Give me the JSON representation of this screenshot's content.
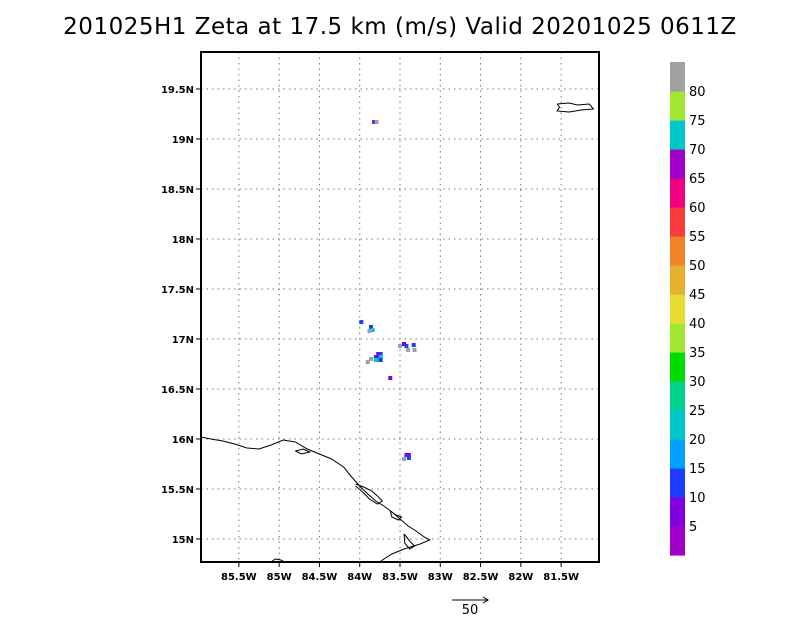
{
  "title": "201025H1 Zeta at 17.5 km (m/s) Valid 20201025 0611Z",
  "map": {
    "lon_range": [
      -85.97,
      -81.03
    ],
    "lat_range": [
      14.77,
      19.87
    ],
    "lon_ticks": [
      {
        "value": -85.5,
        "label": "85.5W"
      },
      {
        "value": -85.0,
        "label": "85W"
      },
      {
        "value": -84.5,
        "label": "84.5W"
      },
      {
        "value": -84.0,
        "label": "84W"
      },
      {
        "value": -83.5,
        "label": "83.5W"
      },
      {
        "value": -83.0,
        "label": "83W"
      },
      {
        "value": -82.5,
        "label": "82.5W"
      },
      {
        "value": -82.0,
        "label": "82W"
      },
      {
        "value": -81.5,
        "label": "81.5W"
      }
    ],
    "lat_ticks": [
      {
        "value": 15.0,
        "label": "15N"
      },
      {
        "value": 15.5,
        "label": "15.5N"
      },
      {
        "value": 16.0,
        "label": "16N"
      },
      {
        "value": 16.5,
        "label": "16.5N"
      },
      {
        "value": 17.0,
        "label": "17N"
      },
      {
        "value": 17.5,
        "label": "17.5N"
      },
      {
        "value": 18.0,
        "label": "18N"
      },
      {
        "value": 18.5,
        "label": "18.5N"
      },
      {
        "value": 19.0,
        "label": "19N"
      },
      {
        "value": 19.5,
        "label": "19.5N"
      }
    ],
    "grid": true,
    "coastline": [
      [
        [
          -85.97,
          16.02
        ],
        [
          -85.85,
          16.0
        ],
        [
          -85.7,
          15.98
        ],
        [
          -85.55,
          15.95
        ],
        [
          -85.4,
          15.91
        ],
        [
          -85.25,
          15.9
        ],
        [
          -85.1,
          15.94
        ],
        [
          -84.95,
          15.99
        ],
        [
          -84.8,
          15.97
        ],
        [
          -84.65,
          15.9
        ],
        [
          -84.5,
          15.85
        ],
        [
          -84.35,
          15.8
        ],
        [
          -84.2,
          15.72
        ],
        [
          -84.1,
          15.62
        ],
        [
          -84.0,
          15.53
        ],
        [
          -83.9,
          15.45
        ],
        [
          -83.8,
          15.38
        ],
        [
          -83.7,
          15.33
        ],
        [
          -83.6,
          15.27
        ],
        [
          -83.5,
          15.2
        ],
        [
          -83.4,
          15.13
        ],
        [
          -83.3,
          15.08
        ],
        [
          -83.2,
          15.02
        ],
        [
          -83.13,
          14.99
        ],
        [
          -83.25,
          14.95
        ],
        [
          -83.45,
          14.9
        ],
        [
          -83.6,
          14.85
        ],
        [
          -83.7,
          14.8
        ],
        [
          -83.75,
          14.77
        ]
      ],
      [
        [
          -84.05,
          15.55
        ],
        [
          -83.95,
          15.52
        ],
        [
          -83.85,
          15.48
        ],
        [
          -83.78,
          15.43
        ],
        [
          -83.72,
          15.38
        ],
        [
          -83.78,
          15.35
        ],
        [
          -83.88,
          15.4
        ],
        [
          -83.95,
          15.46
        ],
        [
          -84.05,
          15.53
        ]
      ],
      [
        [
          -83.62,
          15.28
        ],
        [
          -83.55,
          15.24
        ],
        [
          -83.48,
          15.22
        ],
        [
          -83.52,
          15.19
        ],
        [
          -83.6,
          15.22
        ],
        [
          -83.62,
          15.28
        ]
      ],
      [
        [
          -83.45,
          15.05
        ],
        [
          -83.38,
          14.98
        ],
        [
          -83.32,
          14.93
        ],
        [
          -83.38,
          14.9
        ],
        [
          -83.44,
          14.96
        ],
        [
          -83.45,
          15.05
        ]
      ],
      [
        [
          -85.1,
          14.77
        ],
        [
          -85.05,
          14.8
        ],
        [
          -84.98,
          14.79
        ],
        [
          -84.93,
          14.77
        ]
      ],
      [
        [
          -84.8,
          15.88
        ],
        [
          -84.7,
          15.9
        ],
        [
          -84.62,
          15.87
        ],
        [
          -84.72,
          15.85
        ],
        [
          -84.8,
          15.88
        ]
      ],
      [
        [
          -81.55,
          19.35
        ],
        [
          -81.4,
          19.36
        ],
        [
          -81.3,
          19.34
        ],
        [
          -81.15,
          19.35
        ],
        [
          -81.1,
          19.3
        ],
        [
          -81.25,
          19.29
        ],
        [
          -81.4,
          19.27
        ],
        [
          -81.55,
          19.28
        ],
        [
          -81.52,
          19.32
        ],
        [
          -81.55,
          19.35
        ]
      ]
    ],
    "wind_cells": [
      {
        "lon": -83.82,
        "lat": 19.17,
        "value": 5
      },
      {
        "lon": -83.79,
        "lat": 19.17,
        "value": 80
      },
      {
        "lon": -83.98,
        "lat": 17.17,
        "value": 10
      },
      {
        "lon": -83.86,
        "lat": 17.12,
        "value": 10
      },
      {
        "lon": -83.84,
        "lat": 17.09,
        "value": 20
      },
      {
        "lon": -83.88,
        "lat": 17.08,
        "value": 80
      },
      {
        "lon": -83.77,
        "lat": 16.85,
        "value": 5
      },
      {
        "lon": -83.74,
        "lat": 16.85,
        "value": 10
      },
      {
        "lon": -83.8,
        "lat": 16.82,
        "value": 10
      },
      {
        "lon": -83.77,
        "lat": 16.82,
        "value": 5
      },
      {
        "lon": -83.74,
        "lat": 16.82,
        "value": 20
      },
      {
        "lon": -83.8,
        "lat": 16.79,
        "value": 20
      },
      {
        "lon": -83.77,
        "lat": 16.79,
        "value": 20
      },
      {
        "lon": -83.74,
        "lat": 16.79,
        "value": 10
      },
      {
        "lon": -83.86,
        "lat": 16.8,
        "value": 80
      },
      {
        "lon": -83.9,
        "lat": 16.77,
        "value": 80
      },
      {
        "lon": -83.62,
        "lat": 16.61,
        "value": 5
      },
      {
        "lon": -83.45,
        "lat": 16.95,
        "value": 5
      },
      {
        "lon": -83.42,
        "lat": 16.93,
        "value": 10
      },
      {
        "lon": -83.5,
        "lat": 16.93,
        "value": 80
      },
      {
        "lon": -83.4,
        "lat": 16.89,
        "value": 80
      },
      {
        "lon": -83.33,
        "lat": 16.94,
        "value": 10
      },
      {
        "lon": -83.32,
        "lat": 16.89,
        "value": 80
      },
      {
        "lon": -83.42,
        "lat": 15.84,
        "value": 10
      },
      {
        "lon": -83.39,
        "lat": 15.84,
        "value": 5
      },
      {
        "lon": -83.39,
        "lat": 15.81,
        "value": 10
      },
      {
        "lon": -83.45,
        "lat": 15.8,
        "value": 80
      }
    ]
  },
  "colorbar": {
    "levels": [
      0,
      5,
      10,
      15,
      20,
      25,
      30,
      35,
      40,
      45,
      50,
      55,
      60,
      65,
      70,
      75,
      80,
      85
    ],
    "labels": [
      "5",
      "10",
      "15",
      "20",
      "25",
      "30",
      "35",
      "40",
      "45",
      "50",
      "55",
      "60",
      "65",
      "70",
      "75",
      "80"
    ],
    "colors": [
      "#a000c8",
      "#8200dc",
      "#1e3cff",
      "#00a0ff",
      "#00c8c8",
      "#00d28c",
      "#00dc00",
      "#a0e632",
      "#e6dc32",
      "#e6af2d",
      "#f08228",
      "#fa3c3c",
      "#f00082",
      "#a000c8",
      "#00c8c8",
      "#a0e632",
      "#a0a0a0"
    ]
  },
  "reference_vector": {
    "label": "50"
  }
}
